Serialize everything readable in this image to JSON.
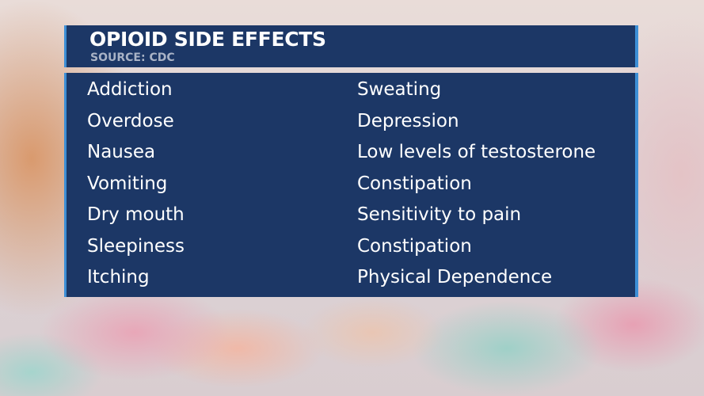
{
  "header": {
    "title": "OPIOID SIDE EFFECTS",
    "source": "SOURCE: CDC"
  },
  "left_column": [
    "Addiction",
    "Overdose",
    "Nausea",
    "Vomiting",
    "Dry mouth",
    "Sleepiness",
    "Itching"
  ],
  "right_column": [
    "Sweating",
    "Depression",
    "Low levels of testosterone",
    "Constipation",
    "Sensitivity to pain",
    "Constipation",
    "Physical Dependence"
  ],
  "colors": {
    "panel": "#1c3766",
    "accent": "#3d8fd6",
    "source_text": "#a9b3c6"
  }
}
